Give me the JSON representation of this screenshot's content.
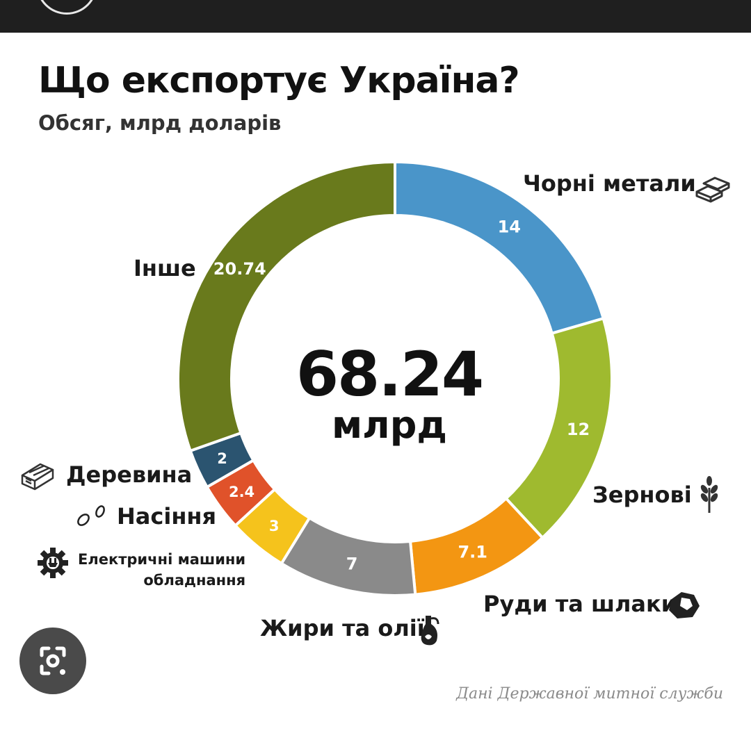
{
  "header": {
    "title": "Що експортує Україна?",
    "subtitle": "Обсяг, млрд доларів"
  },
  "center": {
    "value": "68.24",
    "unit": "млрд"
  },
  "source": "Дані Державної митної служби",
  "chart_data": {
    "type": "pie",
    "style": "donut",
    "title": "Що експортує Україна?",
    "subtitle": "Обсяг, млрд доларів",
    "total": 68.24,
    "slices": [
      {
        "label": "Чорні метали",
        "value": 14,
        "value_label": "14",
        "color": "#4a95c9",
        "icon": "metal-ingots-icon"
      },
      {
        "label": "Зернові",
        "value": 12,
        "value_label": "12",
        "color": "#9fba2f",
        "icon": "wheat-icon"
      },
      {
        "label": "Руди та шлаки",
        "value": 7.1,
        "value_label": "7.1",
        "color": "#f39612",
        "icon": "ore-icon"
      },
      {
        "label": "Жири та олії",
        "value": 7,
        "value_label": "7",
        "color": "#8a8a8a",
        "icon": "oil-bottle-icon"
      },
      {
        "label": "Електричні машини обладнання",
        "label_lines": [
          "Електричні машини",
          "обладнання"
        ],
        "value": 3,
        "value_label": "3",
        "color": "#f5c31c",
        "icon": "gear-plug-icon"
      },
      {
        "label": "Насіння",
        "value": 2.4,
        "value_label": "2.4",
        "color": "#e0522a",
        "icon": "seeds-icon"
      },
      {
        "label": "Деревина",
        "value": 2,
        "value_label": "2",
        "color": "#2b5470",
        "icon": "wood-log-icon"
      },
      {
        "label": "Інше",
        "value": 20.74,
        "value_label": "20.74",
        "color": "#697a1c",
        "icon": ""
      }
    ]
  }
}
